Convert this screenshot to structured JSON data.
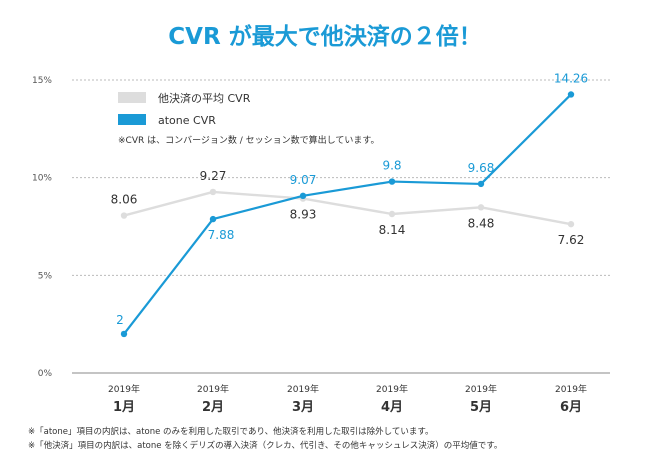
{
  "chart_data": {
    "type": "line",
    "title": "CVR が最大で他決済の２倍！",
    "ylim": [
      0,
      15
    ],
    "y_ticks": [
      "0%",
      "5%",
      "10%",
      "15%"
    ],
    "y_tick_values": [
      0,
      5,
      10,
      15
    ],
    "categories": [
      {
        "year": "2019年",
        "month": "1月"
      },
      {
        "year": "2019年",
        "month": "2月"
      },
      {
        "year": "2019年",
        "month": "3月"
      },
      {
        "year": "2019年",
        "month": "4月"
      },
      {
        "year": "2019年",
        "month": "5月"
      },
      {
        "year": "2019年",
        "month": "6月"
      }
    ],
    "series": [
      {
        "name": "他決済の平均 CVR",
        "color": "#dddddd",
        "label_color": "#333333",
        "values": [
          8.06,
          9.27,
          8.93,
          8.14,
          8.48,
          7.62
        ],
        "labels": [
          "8.06",
          "9.27",
          "8.93",
          "8.14",
          "8.48",
          "7.62"
        ]
      },
      {
        "name": "atone CVR",
        "color": "#1a9ad6",
        "label_color": "#1a9ad6",
        "values": [
          2,
          7.88,
          9.07,
          9.8,
          9.68,
          14.26
        ],
        "labels": [
          "2",
          "7.88",
          "9.07",
          "9.8",
          "9.68",
          "14.26"
        ]
      }
    ],
    "legend_note": "※CVR は、コンバージョン数 / セッション数で算出しています。",
    "legend_position": "top-left",
    "grid": true,
    "accent_color": "#1a9ad6"
  },
  "footnotes": [
    "※「atone」項目の内訳は、atone のみを利用した取引であり、他決済を利用した取引は除外しています。",
    "※「他決済」項目の内訳は、atone を除くデリズの導入決済（クレカ、代引き、その他キャッシュレス決済）の平均値です。"
  ]
}
